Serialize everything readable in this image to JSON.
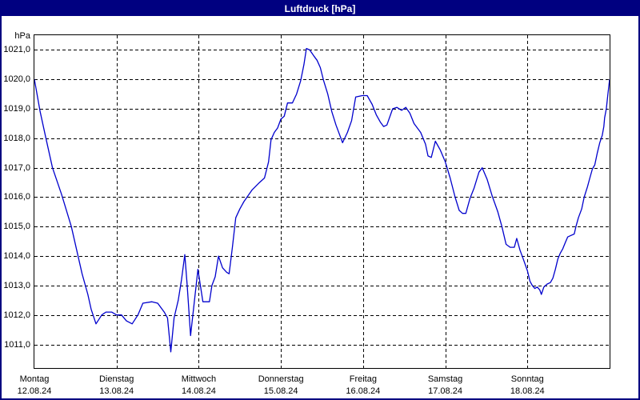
{
  "window": {
    "title": "Luftdruck [hPa]"
  },
  "colors": {
    "title_bar_bg": "#000080",
    "title_text": "#ffffff",
    "window_border": "#000080",
    "line": "#0000cd",
    "grid": "#000000",
    "frame": "#000000",
    "plot_bg": "#ffffff",
    "label_text": "#000000"
  },
  "chart_data": {
    "type": "line",
    "title": "Luftdruck [hPa]",
    "y_unit_label": "hPa",
    "ylim": [
      1010.2,
      1021.5
    ],
    "xlim_days": [
      0,
      7
    ],
    "grid": "dashed",
    "legend": "none",
    "y_ticks": [
      {
        "value": 1021,
        "label": "1021,0"
      },
      {
        "value": 1020,
        "label": "1020,0"
      },
      {
        "value": 1019,
        "label": "1019,0"
      },
      {
        "value": 1018,
        "label": "1018,0"
      },
      {
        "value": 1017,
        "label": "1017,0"
      },
      {
        "value": 1016,
        "label": "1016,0"
      },
      {
        "value": 1015,
        "label": "1015,0"
      },
      {
        "value": 1014,
        "label": "1014,0"
      },
      {
        "value": 1013,
        "label": "1013,0"
      },
      {
        "value": 1012,
        "label": "1012,0"
      },
      {
        "value": 1011,
        "label": "1011,0"
      }
    ],
    "x_ticks": [
      {
        "t": 0,
        "day": "Montag",
        "date": "12.08.24"
      },
      {
        "t": 1,
        "day": "Dienstag",
        "date": "13.08.24"
      },
      {
        "t": 2,
        "day": "Mittwoch",
        "date": "14.08.24"
      },
      {
        "t": 3,
        "day": "Donnerstag",
        "date": "15.08.24"
      },
      {
        "t": 4,
        "day": "Freitag",
        "date": "16.08.24"
      },
      {
        "t": 5,
        "day": "Samstag",
        "date": "17.08.24"
      },
      {
        "t": 6,
        "day": "Sonntag",
        "date": "18.08.24"
      }
    ],
    "series": [
      {
        "name": "Luftdruck",
        "points": [
          [
            0.0,
            1020.0
          ],
          [
            0.07,
            1018.9
          ],
          [
            0.14,
            1018.0
          ],
          [
            0.22,
            1017.0
          ],
          [
            0.33,
            1016.1
          ],
          [
            0.45,
            1015.0
          ],
          [
            0.58,
            1013.4
          ],
          [
            0.65,
            1012.7
          ],
          [
            0.69,
            1012.2
          ],
          [
            0.75,
            1011.7
          ],
          [
            0.82,
            1012.0
          ],
          [
            0.87,
            1012.1
          ],
          [
            0.94,
            1012.1
          ],
          [
            1.0,
            1012.0
          ],
          [
            1.06,
            1012.0
          ],
          [
            1.12,
            1011.8
          ],
          [
            1.19,
            1011.7
          ],
          [
            1.26,
            1012.0
          ],
          [
            1.32,
            1012.4
          ],
          [
            1.43,
            1012.45
          ],
          [
            1.5,
            1012.4
          ],
          [
            1.58,
            1012.1
          ],
          [
            1.62,
            1011.9
          ],
          [
            1.66,
            1010.75
          ],
          [
            1.7,
            1011.9
          ],
          [
            1.75,
            1012.5
          ],
          [
            1.79,
            1013.2
          ],
          [
            1.83,
            1014.05
          ],
          [
            1.86,
            1013.0
          ],
          [
            1.9,
            1011.3
          ],
          [
            1.94,
            1012.3
          ],
          [
            1.99,
            1013.55
          ],
          [
            2.02,
            1013.0
          ],
          [
            2.05,
            1012.45
          ],
          [
            2.13,
            1012.45
          ],
          [
            2.16,
            1013.0
          ],
          [
            2.2,
            1013.3
          ],
          [
            2.24,
            1014.0
          ],
          [
            2.29,
            1013.6
          ],
          [
            2.34,
            1013.45
          ],
          [
            2.37,
            1013.4
          ],
          [
            2.41,
            1014.3
          ],
          [
            2.45,
            1015.3
          ],
          [
            2.5,
            1015.6
          ],
          [
            2.55,
            1015.85
          ],
          [
            2.65,
            1016.25
          ],
          [
            2.74,
            1016.5
          ],
          [
            2.8,
            1016.65
          ],
          [
            2.85,
            1017.2
          ],
          [
            2.88,
            1017.95
          ],
          [
            2.92,
            1018.2
          ],
          [
            2.96,
            1018.35
          ],
          [
            3.0,
            1018.65
          ],
          [
            3.04,
            1018.75
          ],
          [
            3.08,
            1019.2
          ],
          [
            3.14,
            1019.2
          ],
          [
            3.19,
            1019.5
          ],
          [
            3.24,
            1019.95
          ],
          [
            3.28,
            1020.5
          ],
          [
            3.31,
            1021.05
          ],
          [
            3.35,
            1021.0
          ],
          [
            3.4,
            1020.8
          ],
          [
            3.44,
            1020.65
          ],
          [
            3.48,
            1020.4
          ],
          [
            3.52,
            1019.95
          ],
          [
            3.57,
            1019.5
          ],
          [
            3.62,
            1018.9
          ],
          [
            3.67,
            1018.45
          ],
          [
            3.75,
            1017.85
          ],
          [
            3.81,
            1018.2
          ],
          [
            3.86,
            1018.6
          ],
          [
            3.91,
            1019.4
          ],
          [
            3.99,
            1019.45
          ],
          [
            4.05,
            1019.45
          ],
          [
            4.11,
            1019.15
          ],
          [
            4.16,
            1018.8
          ],
          [
            4.21,
            1018.55
          ],
          [
            4.25,
            1018.4
          ],
          [
            4.29,
            1018.45
          ],
          [
            4.36,
            1019.0
          ],
          [
            4.41,
            1019.05
          ],
          [
            4.47,
            1018.95
          ],
          [
            4.52,
            1019.05
          ],
          [
            4.57,
            1018.85
          ],
          [
            4.62,
            1018.5
          ],
          [
            4.7,
            1018.2
          ],
          [
            4.76,
            1017.8
          ],
          [
            4.79,
            1017.4
          ],
          [
            4.83,
            1017.35
          ],
          [
            4.88,
            1017.9
          ],
          [
            4.94,
            1017.6
          ],
          [
            5.0,
            1017.2
          ],
          [
            5.06,
            1016.65
          ],
          [
            5.12,
            1016.0
          ],
          [
            5.17,
            1015.55
          ],
          [
            5.21,
            1015.45
          ],
          [
            5.25,
            1015.45
          ],
          [
            5.3,
            1015.95
          ],
          [
            5.35,
            1016.3
          ],
          [
            5.41,
            1016.85
          ],
          [
            5.45,
            1017.0
          ],
          [
            5.51,
            1016.6
          ],
          [
            5.57,
            1016.05
          ],
          [
            5.64,
            1015.5
          ],
          [
            5.69,
            1015.0
          ],
          [
            5.74,
            1014.4
          ],
          [
            5.79,
            1014.3
          ],
          [
            5.84,
            1014.3
          ],
          [
            5.87,
            1014.6
          ],
          [
            5.91,
            1014.2
          ],
          [
            5.95,
            1013.9
          ],
          [
            6.0,
            1013.5
          ],
          [
            6.03,
            1013.15
          ],
          [
            6.06,
            1013.0
          ],
          [
            6.09,
            1012.9
          ],
          [
            6.12,
            1012.95
          ],
          [
            6.15,
            1012.85
          ],
          [
            6.17,
            1012.7
          ],
          [
            6.2,
            1012.95
          ],
          [
            6.24,
            1013.05
          ],
          [
            6.28,
            1013.1
          ],
          [
            6.31,
            1013.25
          ],
          [
            6.34,
            1013.55
          ],
          [
            6.37,
            1013.9
          ],
          [
            6.4,
            1014.1
          ],
          [
            6.43,
            1014.25
          ],
          [
            6.46,
            1014.45
          ],
          [
            6.49,
            1014.65
          ],
          [
            6.53,
            1014.7
          ],
          [
            6.57,
            1014.75
          ],
          [
            6.59,
            1015.0
          ],
          [
            6.62,
            1015.3
          ],
          [
            6.66,
            1015.6
          ],
          [
            6.69,
            1016.0
          ],
          [
            6.73,
            1016.35
          ],
          [
            6.76,
            1016.65
          ],
          [
            6.79,
            1016.95
          ],
          [
            6.82,
            1017.1
          ],
          [
            6.85,
            1017.5
          ],
          [
            6.88,
            1017.85
          ],
          [
            6.91,
            1018.1
          ],
          [
            6.93,
            1018.4
          ],
          [
            6.94,
            1018.7
          ],
          [
            6.96,
            1019.0
          ],
          [
            6.98,
            1019.5
          ],
          [
            7.0,
            1020.0
          ]
        ]
      }
    ]
  }
}
